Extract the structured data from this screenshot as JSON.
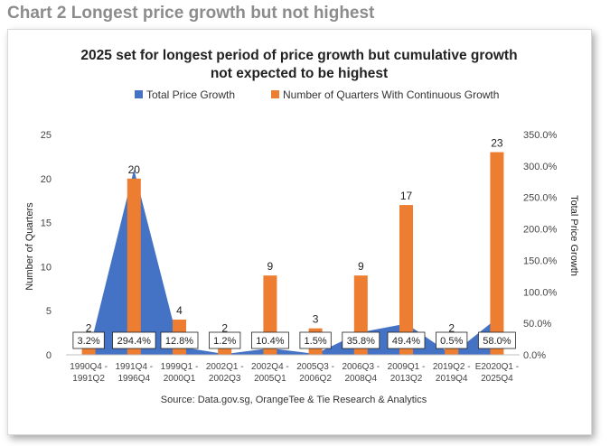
{
  "page": {
    "heading": "Chart 2 Longest price growth but not highest"
  },
  "colors": {
    "growth": "#4472c4",
    "quarters": "#ed7d31",
    "heading": "#8c8c8c"
  },
  "chart_data": {
    "type": "bar",
    "title_lines": [
      "2025 set for longest period of price growth but cumulative growth",
      "not expected to be highest"
    ],
    "categories": [
      [
        "1990Q4 -",
        "1991Q2"
      ],
      [
        "1991Q4 -",
        "1996Q4"
      ],
      [
        "1999Q1 -",
        "2000Q1"
      ],
      [
        "2002Q1 -",
        "2002Q3"
      ],
      [
        "2002Q4 -",
        "2005Q1"
      ],
      [
        "2005Q3 -",
        "2006Q2"
      ],
      [
        "2006Q3 -",
        "2008Q4"
      ],
      [
        "2009Q1 -",
        "2013Q2"
      ],
      [
        "2019Q2 -",
        "2019Q4"
      ],
      [
        "E2020Q1 -",
        "2025Q4"
      ]
    ],
    "series": [
      {
        "name": "Total Price Growth",
        "type": "area",
        "axis": "right",
        "values": [
          3.2,
          294.4,
          12.8,
          1.2,
          10.4,
          1.5,
          35.8,
          49.4,
          0.5,
          58.0
        ],
        "labels": [
          "3.2%",
          "294.4%",
          "12.8%",
          "1.2%",
          "10.4%",
          "1.5%",
          "35.8%",
          "49.4%",
          "0.5%",
          "58.0%"
        ]
      },
      {
        "name": "Number of Quarters With Continuous Growth",
        "type": "bar",
        "axis": "left",
        "values": [
          2,
          20,
          4,
          2,
          9,
          3,
          9,
          17,
          2,
          23
        ],
        "labels": [
          "2",
          "20",
          "4",
          "2",
          "9",
          "3",
          "9",
          "17",
          "2",
          "23"
        ]
      }
    ],
    "y_left": {
      "label": "Number of Quarters",
      "ylim": [
        0,
        25
      ],
      "ticks": [
        "0",
        "5",
        "10",
        "15",
        "20",
        "25"
      ]
    },
    "y_right": {
      "label": "Total Price Growth",
      "ylim": [
        0,
        350
      ],
      "ticks": [
        "0.0%",
        "50.0%",
        "100.0%",
        "150.0%",
        "200.0%",
        "250.0%",
        "300.0%",
        "350.0%"
      ]
    },
    "grid": false,
    "legend_position": "top",
    "source": "Source: Data.gov.sg, OrangeTee & Tie Research & Analytics"
  }
}
